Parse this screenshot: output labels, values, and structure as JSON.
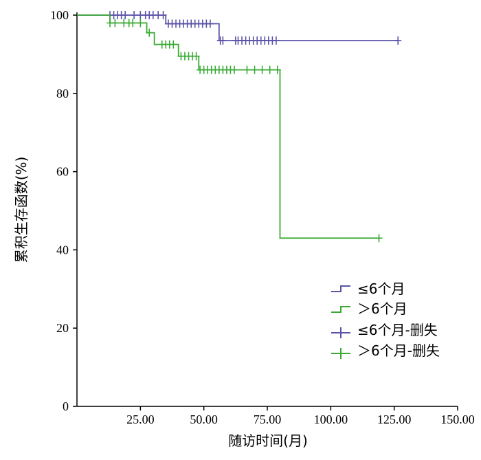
{
  "chart_data": {
    "type": "line",
    "title": "",
    "xlabel": "随访时间(月)",
    "ylabel": "累积生存函数(%)",
    "xlim": [
      0,
      150
    ],
    "ylim": [
      0,
      100
    ],
    "x_ticks": [
      "25.00",
      "50.00",
      "75.00",
      "100.00",
      "125.00",
      "150.00"
    ],
    "y_ticks": [
      "0",
      "20",
      "40",
      "60",
      "80",
      "100"
    ],
    "grid": false,
    "legend_position": "bottom-right",
    "legend": [
      "≤6个月",
      "＞6个月",
      "≤6个月-删失",
      "＞6个月-删失"
    ],
    "colors": {
      "le6": "#5a54a8",
      "gt6": "#3aaa35"
    },
    "series": [
      {
        "name": "≤6个月",
        "color": "#5a54a8",
        "step_x": [
          0,
          35,
          56,
          126.5
        ],
        "step_y": [
          100,
          97.8,
          93.5,
          93.5
        ],
        "censored": [
          {
            "x": 13,
            "y": 100
          },
          {
            "x": 14.5,
            "y": 100
          },
          {
            "x": 16,
            "y": 100
          },
          {
            "x": 17.5,
            "y": 100
          },
          {
            "x": 19,
            "y": 100
          },
          {
            "x": 22.5,
            "y": 100
          },
          {
            "x": 25,
            "y": 100
          },
          {
            "x": 27,
            "y": 100
          },
          {
            "x": 28.5,
            "y": 100
          },
          {
            "x": 30,
            "y": 100
          },
          {
            "x": 32,
            "y": 100
          },
          {
            "x": 34,
            "y": 100
          },
          {
            "x": 36,
            "y": 97.8
          },
          {
            "x": 37.5,
            "y": 97.8
          },
          {
            "x": 39,
            "y": 97.8
          },
          {
            "x": 40.5,
            "y": 97.8
          },
          {
            "x": 42,
            "y": 97.8
          },
          {
            "x": 43.5,
            "y": 97.8
          },
          {
            "x": 45,
            "y": 97.8
          },
          {
            "x": 46.5,
            "y": 97.8
          },
          {
            "x": 48,
            "y": 97.8
          },
          {
            "x": 49.5,
            "y": 97.8
          },
          {
            "x": 51,
            "y": 97.8
          },
          {
            "x": 52.5,
            "y": 97.8
          },
          {
            "x": 56.5,
            "y": 93.5
          },
          {
            "x": 57.5,
            "y": 93.5
          },
          {
            "x": 62.5,
            "y": 93.5
          },
          {
            "x": 63.5,
            "y": 93.5
          },
          {
            "x": 65,
            "y": 93.5
          },
          {
            "x": 66.5,
            "y": 93.5
          },
          {
            "x": 68,
            "y": 93.5
          },
          {
            "x": 69.5,
            "y": 93.5
          },
          {
            "x": 71,
            "y": 93.5
          },
          {
            "x": 72.5,
            "y": 93.5
          },
          {
            "x": 74,
            "y": 93.5
          },
          {
            "x": 75.5,
            "y": 93.5
          },
          {
            "x": 77,
            "y": 93.5
          },
          {
            "x": 78.5,
            "y": 93.5
          },
          {
            "x": 126.5,
            "y": 93.5
          }
        ]
      },
      {
        "name": "＞6个月",
        "color": "#3aaa35",
        "step_x": [
          0,
          13,
          27.5,
          30.5,
          40,
          48,
          80,
          119
        ],
        "step_y": [
          100,
          98,
          95.5,
          92.5,
          89.5,
          86,
          43,
          43
        ],
        "censored": [
          {
            "x": 13,
            "y": 98
          },
          {
            "x": 15,
            "y": 98
          },
          {
            "x": 18.5,
            "y": 98
          },
          {
            "x": 20.5,
            "y": 98
          },
          {
            "x": 22,
            "y": 98
          },
          {
            "x": 25,
            "y": 98
          },
          {
            "x": 28.5,
            "y": 95.5
          },
          {
            "x": 33.5,
            "y": 92.5
          },
          {
            "x": 35,
            "y": 92.5
          },
          {
            "x": 36.5,
            "y": 92.5
          },
          {
            "x": 38,
            "y": 92.5
          },
          {
            "x": 41,
            "y": 89.5
          },
          {
            "x": 42.5,
            "y": 89.5
          },
          {
            "x": 44,
            "y": 89.5
          },
          {
            "x": 45.5,
            "y": 89.5
          },
          {
            "x": 47,
            "y": 89.5
          },
          {
            "x": 48.5,
            "y": 86
          },
          {
            "x": 50,
            "y": 86
          },
          {
            "x": 51.5,
            "y": 86
          },
          {
            "x": 53,
            "y": 86
          },
          {
            "x": 54.5,
            "y": 86
          },
          {
            "x": 56,
            "y": 86
          },
          {
            "x": 57.5,
            "y": 86
          },
          {
            "x": 59,
            "y": 86
          },
          {
            "x": 60.5,
            "y": 86
          },
          {
            "x": 62,
            "y": 86
          },
          {
            "x": 67,
            "y": 86
          },
          {
            "x": 70,
            "y": 86
          },
          {
            "x": 73,
            "y": 86
          },
          {
            "x": 76,
            "y": 86
          },
          {
            "x": 79,
            "y": 86
          },
          {
            "x": 119,
            "y": 43
          }
        ]
      }
    ]
  }
}
